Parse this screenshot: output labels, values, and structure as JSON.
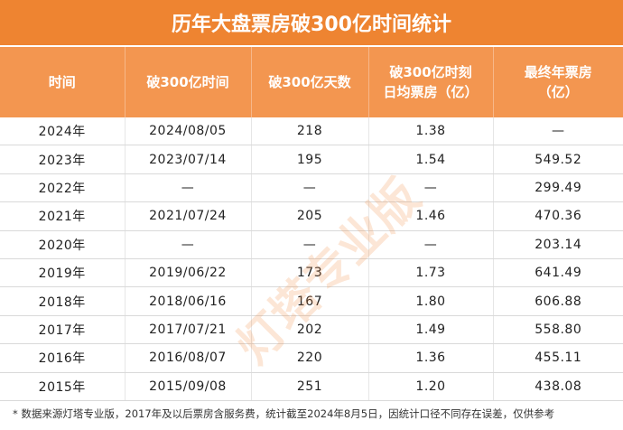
{
  "title": "历年大盘票房破300亿时间统计",
  "table": {
    "header": [
      "时间",
      "破300亿时间",
      "破300亿天数",
      "破300亿时刻\n日均票房（亿）",
      "最终年票房\n（亿）"
    ],
    "rows": [
      [
        "2024年",
        "2024/08/05",
        "218",
        "1.38",
        "—"
      ],
      [
        "2023年",
        "2023/07/14",
        "195",
        "1.54",
        "549.52"
      ],
      [
        "2022年",
        "—",
        "—",
        "—",
        "299.49"
      ],
      [
        "2021年",
        "2021/07/24",
        "205",
        "1.46",
        "470.36"
      ],
      [
        "2020年",
        "—",
        "—",
        "—",
        "203.14"
      ],
      [
        "2019年",
        "2019/06/22",
        "173",
        "1.73",
        "641.49"
      ],
      [
        "2018年",
        "2018/06/16",
        "167",
        "1.80",
        "606.88"
      ],
      [
        "2017年",
        "2017/07/21",
        "202",
        "1.49",
        "558.80"
      ],
      [
        "2016年",
        "2016/08/07",
        "220",
        "1.36",
        "455.11"
      ],
      [
        "2015年",
        "2015/09/08",
        "251",
        "1.20",
        "438.08"
      ]
    ]
  },
  "watermark": "灯塔专业版",
  "note": "* 数据来源灯塔专业版，2017年及以后票房含服务费，统计截至2024年8月5日，因统计口径不同存在误差，仅供参考"
}
